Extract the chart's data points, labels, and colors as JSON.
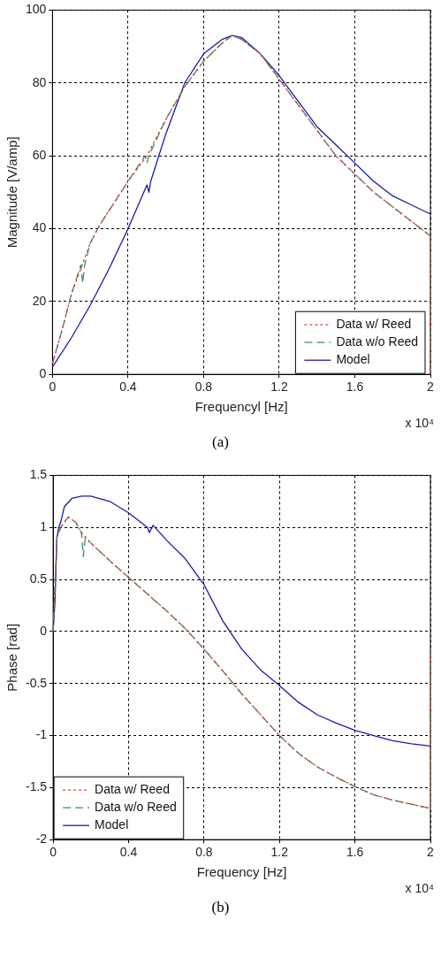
{
  "chart_data": [
    {
      "type": "line",
      "xlabel": "Frequencyl [Hz]",
      "ylabel": "Magnitude [V/amp]",
      "xlim": [
        0,
        2
      ],
      "xticks": [
        0,
        0.4,
        0.8,
        1.2,
        1.6,
        2
      ],
      "ylim": [
        0,
        100
      ],
      "yticks": [
        0,
        20,
        40,
        60,
        80,
        100
      ],
      "grid": true,
      "legend": "bottom right",
      "annotations": [
        "x 10⁴",
        "(a)"
      ],
      "series": [
        {
          "name": "Data w/ Reed",
          "color": "#d9403a",
          "line_style": "dotted",
          "x": [
            0,
            0.05,
            0.1,
            0.15,
            0.2,
            0.25,
            0.3,
            0.4,
            0.5,
            0.6,
            0.7,
            0.8,
            0.9,
            0.95,
            1.0,
            1.1,
            1.2,
            1.3,
            1.4,
            1.5,
            1.6,
            1.7,
            1.8,
            1.9,
            2,
            2
          ],
          "values": [
            3,
            12,
            22,
            29,
            36,
            41,
            45,
            53,
            60,
            70,
            79,
            86,
            91,
            93,
            92,
            88,
            81,
            74,
            67,
            60,
            55,
            50,
            46,
            42,
            38,
            0
          ]
        },
        {
          "name": "Data w/o Reed",
          "color": "#3c8c6e",
          "line_style": "dashed",
          "x": [
            0,
            0.05,
            0.1,
            0.15,
            0.16,
            0.17,
            0.2,
            0.25,
            0.3,
            0.4,
            0.49,
            0.5,
            0.51,
            0.6,
            0.7,
            0.8,
            0.9,
            0.95,
            1.0,
            1.1,
            1.2,
            1.3,
            1.4,
            1.5,
            1.6,
            1.7,
            1.8,
            1.9,
            2,
            2
          ],
          "values": [
            3,
            12,
            22,
            30,
            25,
            30,
            36,
            41,
            45,
            53,
            60,
            58,
            60,
            70,
            79,
            86,
            91,
            93,
            92,
            88,
            81,
            74,
            67,
            60,
            55,
            50,
            46,
            42,
            38,
            0
          ]
        },
        {
          "name": "Model",
          "color": "#1a1aa8",
          "line_style": "solid",
          "x": [
            0,
            0.1,
            0.2,
            0.3,
            0.4,
            0.5,
            0.51,
            0.52,
            0.6,
            0.7,
            0.8,
            0.9,
            0.95,
            1.0,
            1.1,
            1.2,
            1.3,
            1.4,
            1.5,
            1.6,
            1.7,
            1.8,
            1.9,
            2
          ],
          "values": [
            2,
            10,
            19,
            29,
            40,
            52,
            50,
            53,
            66,
            80,
            88,
            92,
            93,
            92.5,
            88,
            82,
            75,
            68,
            63,
            58,
            53,
            49,
            46.5,
            44
          ]
        }
      ]
    },
    {
      "type": "line",
      "xlabel": "Frequency [Hz]",
      "ylabel": "Phase [rad]",
      "xlim": [
        0,
        2
      ],
      "xticks": [
        0,
        0.4,
        0.8,
        1.2,
        1.6,
        2
      ],
      "ylim": [
        -2,
        1.5
      ],
      "yticks": [
        -2,
        -1.5,
        -1,
        -0.5,
        0,
        0.5,
        1,
        1.5
      ],
      "grid": true,
      "legend": "bottom left",
      "annotations": [
        "x 10⁴",
        "(b)"
      ],
      "series": [
        {
          "name": "Data w/ Reed",
          "color": "#d9403a",
          "line_style": "dotted",
          "x": [
            0,
            0.02,
            0.04,
            0.08,
            0.12,
            0.15,
            0.2,
            0.3,
            0.4,
            0.5,
            0.6,
            0.7,
            0.8,
            0.9,
            1.0,
            1.1,
            1.2,
            1.3,
            1.4,
            1.5,
            1.6,
            1.7,
            1.8,
            1.9,
            2,
            2
          ],
          "values": [
            0,
            0.9,
            1.0,
            1.1,
            1.05,
            0.95,
            0.85,
            0.68,
            0.52,
            0.36,
            0.2,
            0.03,
            -0.17,
            -0.38,
            -0.6,
            -0.8,
            -1.0,
            -1.17,
            -1.3,
            -1.4,
            -1.49,
            -1.57,
            -1.62,
            -1.66,
            -1.7,
            -0.15
          ]
        },
        {
          "name": "Data w/o Reed",
          "color": "#3c8c6e",
          "line_style": "dashed",
          "x": [
            0,
            0.02,
            0.04,
            0.08,
            0.12,
            0.15,
            0.16,
            0.17,
            0.2,
            0.3,
            0.4,
            0.5,
            0.6,
            0.7,
            0.8,
            0.9,
            1.0,
            1.1,
            1.2,
            1.3,
            1.4,
            1.5,
            1.6,
            1.7,
            1.8,
            1.9,
            2,
            2
          ],
          "values": [
            0,
            0.9,
            1.0,
            1.1,
            1.05,
            0.95,
            0.72,
            0.9,
            0.85,
            0.68,
            0.52,
            0.36,
            0.2,
            0.03,
            -0.17,
            -0.38,
            -0.6,
            -0.8,
            -1.0,
            -1.17,
            -1.3,
            -1.4,
            -1.49,
            -1.57,
            -1.62,
            -1.66,
            -1.7,
            -0.15
          ]
        },
        {
          "name": "Model",
          "color": "#1a1aa8",
          "line_style": "solid",
          "x": [
            0,
            0.01,
            0.02,
            0.03,
            0.04,
            0.06,
            0.1,
            0.15,
            0.2,
            0.3,
            0.4,
            0.5,
            0.51,
            0.53,
            0.6,
            0.7,
            0.8,
            0.9,
            1.0,
            1.1,
            1.2,
            1.3,
            1.4,
            1.5,
            1.6,
            1.7,
            1.8,
            1.9,
            2
          ],
          "values": [
            0,
            0.3,
            0.9,
            1.0,
            1.05,
            1.2,
            1.28,
            1.3,
            1.3,
            1.25,
            1.14,
            1.0,
            0.95,
            1.02,
            0.88,
            0.7,
            0.45,
            0.1,
            -0.17,
            -0.37,
            -0.52,
            -0.68,
            -0.8,
            -0.88,
            -0.95,
            -1.0,
            -1.05,
            -1.08,
            -1.1
          ]
        }
      ]
    }
  ]
}
